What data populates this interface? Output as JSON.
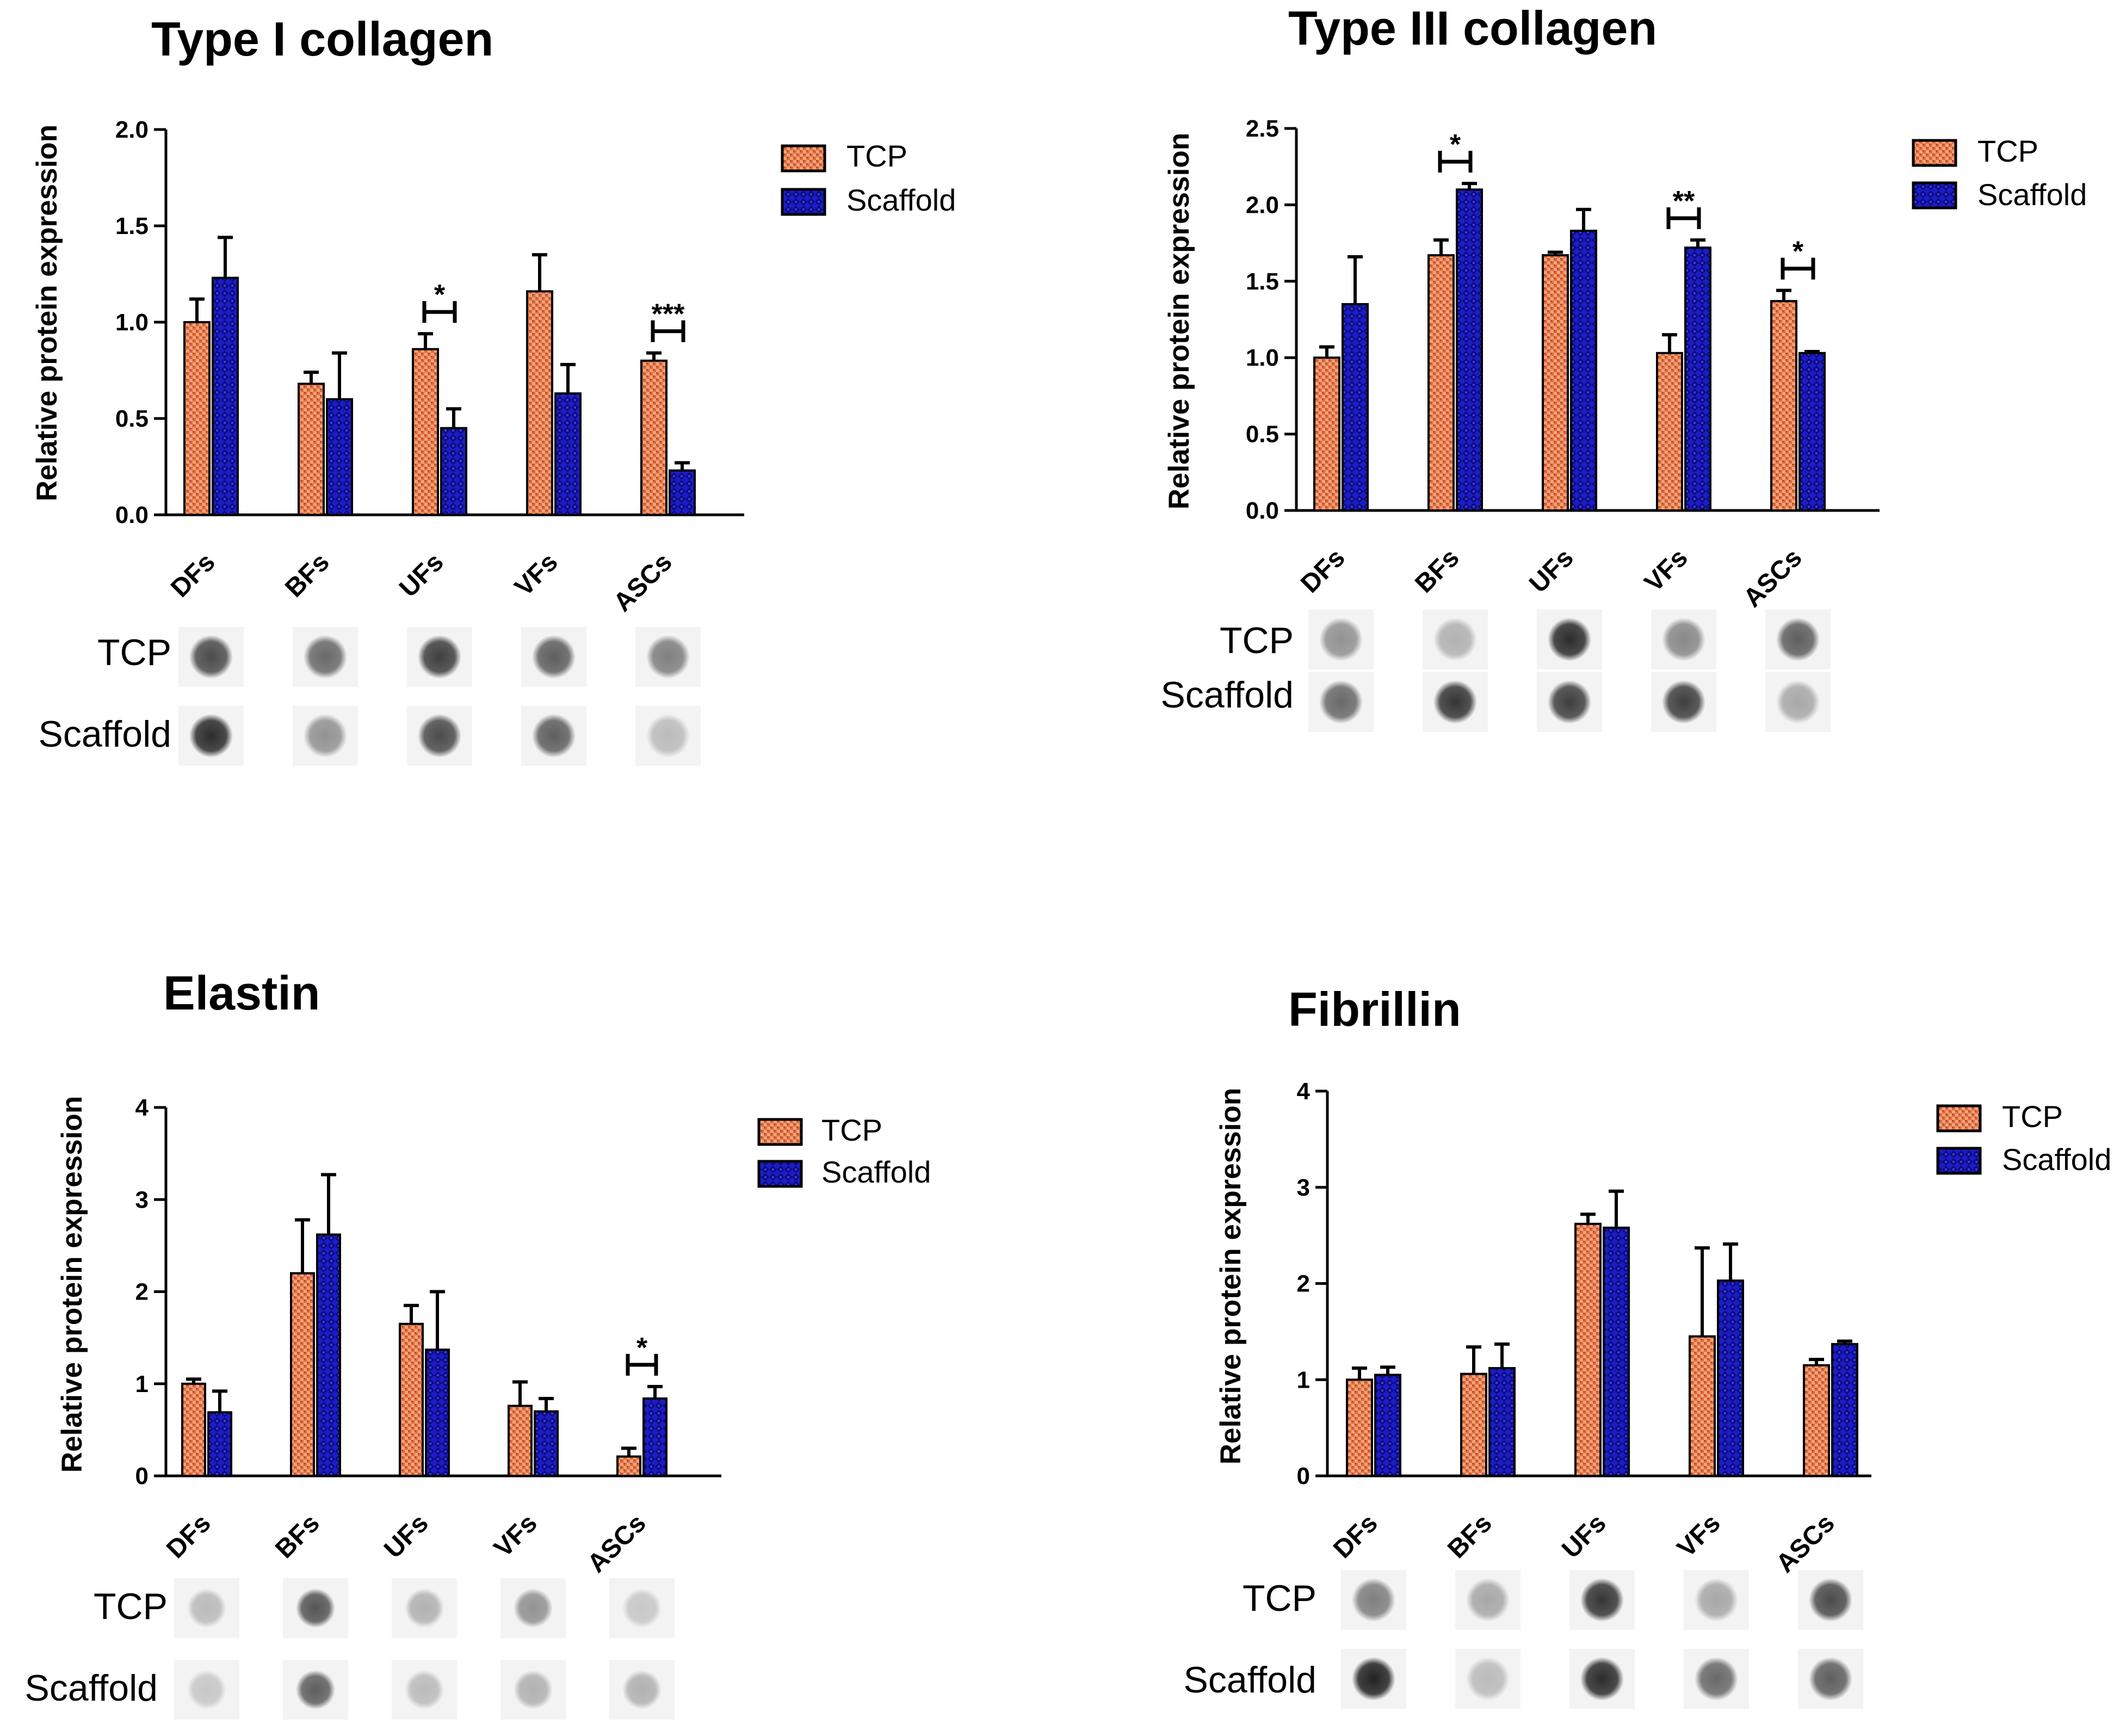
{
  "legend_labels": [
    "TCP",
    "Scaffold"
  ],
  "blot_labels": [
    "TCP",
    "Scaffold"
  ],
  "colors": {
    "tcp": "#e06a3c",
    "scaffold": "#1c1cc8",
    "axis": "#000000"
  },
  "chart_data": [
    {
      "type": "bar",
      "title": "Type I collagen",
      "ylabel": "Relative protein expression",
      "xlabel": "",
      "categories": [
        "DFs",
        "BFs",
        "UFs",
        "VFs",
        "ASCs"
      ],
      "series": [
        {
          "name": "TCP",
          "values": [
            1.0,
            0.68,
            0.86,
            1.16,
            0.8
          ],
          "errors": [
            0.12,
            0.06,
            0.08,
            0.19,
            0.04
          ]
        },
        {
          "name": "Scaffold",
          "values": [
            1.23,
            0.6,
            0.45,
            0.63,
            0.23
          ],
          "errors": [
            0.21,
            0.24,
            0.1,
            0.15,
            0.04
          ]
        }
      ],
      "ylim": [
        0,
        2.0
      ],
      "yticks": [
        "0.0",
        "0.5",
        "1.0",
        "1.5",
        "2.0"
      ],
      "significance": [
        {
          "category": "UFs",
          "label": "*"
        },
        {
          "category": "ASCs",
          "label": "***"
        }
      ],
      "blots": {
        "tcp": [
          0.7,
          0.55,
          0.75,
          0.6,
          0.45
        ],
        "scaffold": [
          0.85,
          0.35,
          0.7,
          0.6,
          0.15
        ]
      },
      "legend_position": "top-right",
      "grid": false
    },
    {
      "type": "bar",
      "title": "Type III collagen",
      "ylabel": "Relative protein expression",
      "xlabel": "",
      "categories": [
        "DFs",
        "BFs",
        "UFs",
        "VFs",
        "ASCs"
      ],
      "series": [
        {
          "name": "TCP",
          "values": [
            1.0,
            1.67,
            1.67,
            1.03,
            1.37
          ],
          "errors": [
            0.07,
            0.1,
            0.02,
            0.12,
            0.07
          ]
        },
        {
          "name": "Scaffold",
          "values": [
            1.35,
            2.1,
            1.83,
            1.72,
            1.03
          ],
          "errors": [
            0.31,
            0.04,
            0.14,
            0.05,
            0.01
          ]
        }
      ],
      "ylim": [
        0,
        2.5
      ],
      "yticks": [
        "0.0",
        "0.5",
        "1.0",
        "1.5",
        "2.0",
        "2.5"
      ],
      "significance": [
        {
          "category": "BFs",
          "label": "*"
        },
        {
          "category": "VFs",
          "label": "**"
        },
        {
          "category": "ASCs",
          "label": "*"
        }
      ],
      "blots": {
        "tcp": [
          0.35,
          0.2,
          0.85,
          0.4,
          0.6
        ],
        "scaffold": [
          0.55,
          0.8,
          0.75,
          0.75,
          0.25
        ]
      },
      "legend_position": "top-right",
      "grid": false
    },
    {
      "type": "bar",
      "title": "Elastin",
      "ylabel": "Relative protein expression",
      "xlabel": "",
      "categories": [
        "DFs",
        "BFs",
        "UFs",
        "VFs",
        "ASCs"
      ],
      "series": [
        {
          "name": "TCP",
          "values": [
            1.0,
            2.2,
            1.65,
            0.76,
            0.21
          ],
          "errors": [
            0.05,
            0.58,
            0.2,
            0.26,
            0.09
          ]
        },
        {
          "name": "Scaffold",
          "values": [
            0.69,
            2.62,
            1.37,
            0.7,
            0.84
          ],
          "errors": [
            0.23,
            0.65,
            0.63,
            0.14,
            0.13
          ]
        }
      ],
      "ylim": [
        0,
        4
      ],
      "yticks": [
        "0",
        "1",
        "2",
        "3",
        "4"
      ],
      "significance": [
        {
          "category": "ASCs",
          "label": "*"
        }
      ],
      "blots": {
        "tcp": [
          0.15,
          0.65,
          0.2,
          0.35,
          0.1
        ],
        "scaffold": [
          0.1,
          0.6,
          0.15,
          0.2,
          0.2
        ]
      },
      "legend_position": "top-right",
      "grid": false
    },
    {
      "type": "bar",
      "title": "Fibrillin",
      "ylabel": "Relative protein expression",
      "xlabel": "",
      "categories": [
        "DFs",
        "BFs",
        "UFs",
        "VFs",
        "ASCs"
      ],
      "series": [
        {
          "name": "TCP",
          "values": [
            1.0,
            1.06,
            2.62,
            1.45,
            1.15
          ],
          "errors": [
            0.12,
            0.28,
            0.1,
            0.92,
            0.06
          ]
        },
        {
          "name": "Scaffold",
          "values": [
            1.05,
            1.12,
            2.58,
            2.03,
            1.37
          ],
          "errors": [
            0.08,
            0.25,
            0.38,
            0.38,
            0.03
          ]
        }
      ],
      "ylim": [
        0,
        4
      ],
      "yticks": [
        "0",
        "1",
        "2",
        "3",
        "4"
      ],
      "significance": [],
      "blots": {
        "tcp": [
          0.45,
          0.25,
          0.8,
          0.25,
          0.7
        ],
        "scaffold": [
          0.9,
          0.15,
          0.85,
          0.55,
          0.6
        ]
      },
      "legend_position": "top-right",
      "grid": false
    }
  ]
}
